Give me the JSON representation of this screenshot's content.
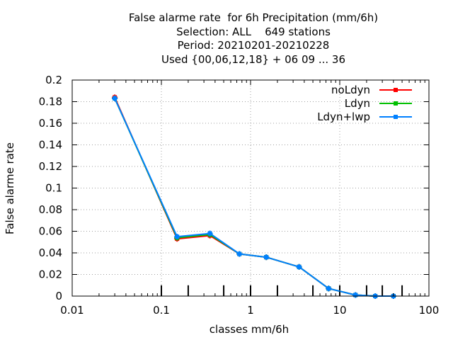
{
  "title_lines": [
    "False alarme rate  for 6h Precipitation (mm/6h)",
    "Selection: ALL    649 stations",
    "Period: 20210201-20210228",
    "Used {00,06,12,18} + 06 09 ... 36"
  ],
  "chart_data": {
    "type": "line",
    "xscale": "log",
    "xlabel": "classes mm/6h",
    "ylabel": "False alarme rate",
    "xlim": [
      0.01,
      100
    ],
    "ylim": [
      0,
      0.2
    ],
    "xticks": [
      "0.01",
      "0.1",
      "1",
      "10",
      "100"
    ],
    "yticks": [
      "0",
      "0.02",
      "0.04",
      "0.06",
      "0.08",
      "0.1",
      "0.12",
      "0.14",
      "0.16",
      "0.18",
      "0.2"
    ],
    "grid": true,
    "legend_position": "top-right",
    "class_marks": [
      0.1,
      0.2,
      0.5,
      1,
      2,
      5,
      10,
      20,
      30,
      50
    ],
    "x": [
      0.03,
      0.15,
      0.35,
      0.75,
      1.5,
      3.5,
      7.5,
      15,
      25,
      40
    ],
    "series": [
      {
        "name": "noLdyn",
        "color": "#ff0000",
        "values": [
          0.184,
          0.053,
          0.056,
          0.039,
          0.036,
          0.027,
          0.007,
          0.001,
          0.0,
          0.0
        ]
      },
      {
        "name": "Ldyn",
        "color": "#00c000",
        "values": [
          0.183,
          0.054,
          0.057,
          0.039,
          0.036,
          0.027,
          0.007,
          0.001,
          0.0,
          0.0
        ]
      },
      {
        "name": "Ldyn+lwp",
        "color": "#0080ff",
        "values": [
          0.183,
          0.055,
          0.058,
          0.039,
          0.036,
          0.027,
          0.007,
          0.001,
          0.0,
          0.0
        ]
      }
    ]
  }
}
